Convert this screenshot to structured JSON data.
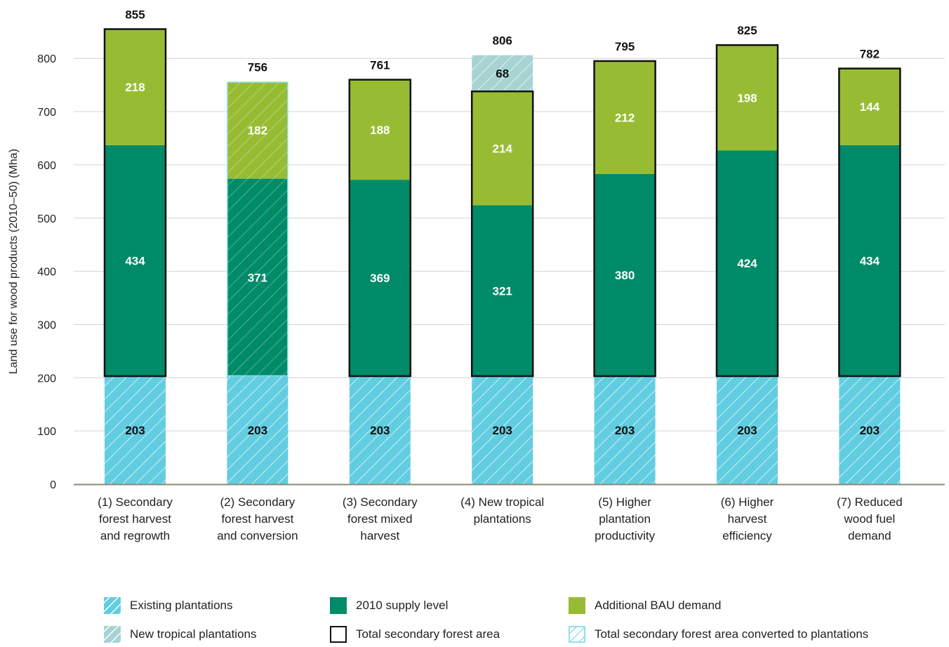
{
  "chart_data": {
    "type": "bar",
    "stacked": true,
    "ylabel": "Land use for wood products (2010–50) (Mha)",
    "ylim": [
      0,
      850
    ],
    "yticks": [
      0,
      100,
      200,
      300,
      400,
      500,
      600,
      700,
      800
    ],
    "grid": true,
    "categories": [
      [
        "(1) Secondary",
        "forest harvest",
        "and regrowth"
      ],
      [
        "(2) Secondary",
        "forest harvest",
        "and conversion"
      ],
      [
        "(3) Secondary",
        "forest mixed",
        "harvest"
      ],
      [
        "(4) New tropical",
        "plantations"
      ],
      [
        "(5) Higher",
        "plantation",
        "productivity"
      ],
      [
        "(6) Higher",
        "harvest",
        "efficiency"
      ],
      [
        "(7) Reduced",
        "wood fuel",
        "demand"
      ]
    ],
    "totals": [
      "855",
      "756",
      "761",
      "806",
      "795",
      "825",
      "782"
    ],
    "series": [
      {
        "name": "Existing plantations",
        "values": [
          203,
          203,
          203,
          203,
          203,
          203,
          203
        ],
        "color": "#62cde0",
        "pattern": "hatch"
      },
      {
        "name": "2010 supply level",
        "values": [
          434,
          371,
          369,
          321,
          380,
          424,
          434
        ],
        "color": "#008b68"
      },
      {
        "name": "Additional BAU demand",
        "values": [
          218,
          182,
          188,
          214,
          212,
          198,
          144
        ],
        "color": "#97bc33"
      },
      {
        "name": "New tropical plantations",
        "values": [
          0,
          0,
          0,
          68,
          0,
          0,
          0
        ],
        "color": "#a8d3d3",
        "pattern": "hatch"
      }
    ],
    "total_secondary_forest_area_outline": [
      true,
      false,
      true,
      true,
      true,
      true,
      true
    ],
    "converted_to_plantations_overlay": [
      false,
      true,
      false,
      false,
      false,
      false,
      false
    ],
    "legend": [
      {
        "label": "Existing plantations",
        "swatch": "existing"
      },
      {
        "label": "2010 supply level",
        "swatch": "supply"
      },
      {
        "label": "Additional BAU demand",
        "swatch": "bau"
      },
      {
        "label": "New tropical plantations",
        "swatch": "newtrop"
      },
      {
        "label": "Total secondary forest area",
        "swatch": "total"
      },
      {
        "label": "Total secondary forest area converted to plantations",
        "swatch": "converted"
      }
    ],
    "legend_position": "bottom"
  }
}
